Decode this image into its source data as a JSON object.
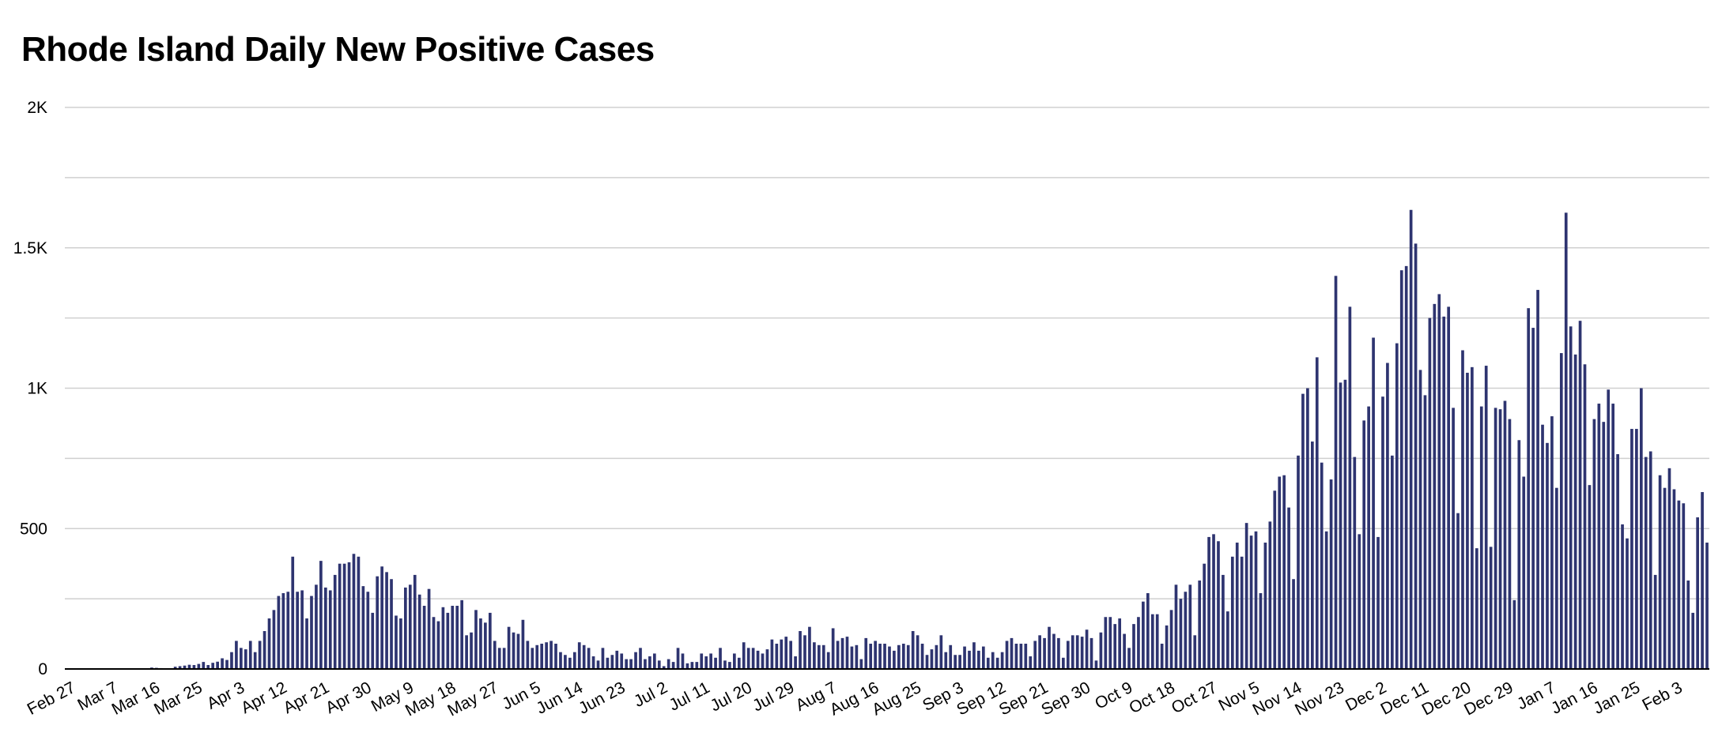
{
  "chart_data": {
    "type": "bar",
    "title": "Rhode Island Daily New Positive Cases",
    "xlabel": "",
    "ylabel": "",
    "ylim": [
      0,
      2000
    ],
    "y_ticks": [
      {
        "value": 0,
        "label": "0"
      },
      {
        "value": 500,
        "label": "500"
      },
      {
        "value": 1000,
        "label": "1K"
      },
      {
        "value": 1500,
        "label": "1.5K"
      },
      {
        "value": 2000,
        "label": "2K"
      }
    ],
    "y_minor_gridlines": [
      250,
      750,
      1250,
      1750
    ],
    "grid": true,
    "legend": "none",
    "bar_color": "#2e3470",
    "grid_color": "#d0d0d0",
    "x_tick_labels": [
      "Feb 27",
      "Mar 7",
      "Mar 16",
      "Mar 25",
      "Apr 3",
      "Apr 12",
      "Apr 21",
      "Apr 30",
      "May 9",
      "May 18",
      "May 27",
      "Jun 5",
      "Jun 14",
      "Jun 23",
      "Jul 2",
      "Jul 11",
      "Jul 20",
      "Jul 29",
      "Aug 7",
      "Aug 16",
      "Aug 25",
      "Sep 3",
      "Sep 12",
      "Sep 21",
      "Sep 30",
      "Oct 9",
      "Oct 18",
      "Oct 27",
      "Nov 5",
      "Nov 14",
      "Nov 23",
      "Dec 2",
      "Dec 11",
      "Dec 20",
      "Dec 29",
      "Jan 7",
      "Jan 16",
      "Jan 25",
      "Feb 3"
    ],
    "x_tick_interval_days": 9,
    "start_date": "2020-02-27",
    "values": [
      0,
      0,
      0,
      0,
      0,
      0,
      0,
      0,
      0,
      0,
      0,
      0,
      0,
      0,
      0,
      0,
      0,
      0,
      5,
      4,
      3,
      0,
      0,
      8,
      10,
      12,
      15,
      14,
      18,
      25,
      14,
      22,
      26,
      38,
      32,
      60,
      100,
      75,
      70,
      100,
      60,
      100,
      135,
      180,
      210,
      260,
      270,
      275,
      400,
      275,
      280,
      180,
      260,
      300,
      385,
      290,
      280,
      335,
      375,
      375,
      380,
      410,
      400,
      295,
      275,
      200,
      330,
      365,
      345,
      320,
      190,
      180,
      290,
      300,
      335,
      265,
      225,
      285,
      185,
      170,
      220,
      200,
      225,
      225,
      245,
      120,
      130,
      210,
      180,
      165,
      200,
      100,
      75,
      75,
      150,
      130,
      125,
      175,
      100,
      75,
      85,
      90,
      95,
      100,
      90,
      60,
      50,
      40,
      60,
      95,
      85,
      75,
      45,
      30,
      75,
      40,
      50,
      65,
      55,
      35,
      35,
      60,
      75,
      35,
      45,
      55,
      30,
      10,
      35,
      25,
      75,
      55,
      20,
      25,
      25,
      55,
      45,
      55,
      40,
      75,
      30,
      25,
      55,
      40,
      95,
      75,
      75,
      65,
      55,
      70,
      105,
      90,
      105,
      115,
      100,
      45,
      135,
      120,
      150,
      95,
      85,
      85,
      60,
      145,
      100,
      110,
      115,
      80,
      85,
      35,
      110,
      90,
      100,
      90,
      90,
      80,
      65,
      85,
      90,
      85,
      135,
      120,
      90,
      50,
      70,
      85,
      120,
      60,
      85,
      50,
      50,
      80,
      65,
      95,
      65,
      80,
      40,
      60,
      40,
      60,
      100,
      110,
      90,
      90,
      90,
      45,
      100,
      120,
      110,
      150,
      125,
      110,
      40,
      100,
      120,
      120,
      115,
      140,
      110,
      30,
      130,
      185,
      185,
      160,
      180,
      125,
      75,
      160,
      185,
      240,
      270,
      195,
      195,
      90,
      155,
      210,
      300,
      250,
      275,
      300,
      120,
      315,
      375,
      470,
      480,
      455,
      335,
      205,
      400,
      450,
      400,
      520,
      475,
      490,
      270,
      450,
      525,
      635,
      685,
      690,
      575,
      320,
      760,
      980,
      1000,
      810,
      1110,
      735,
      490,
      675,
      1400,
      1020,
      1030,
      1290,
      755,
      480,
      885,
      935,
      1180,
      470,
      970,
      1090,
      760,
      1160,
      1420,
      1435,
      1635,
      1515,
      1065,
      975,
      1250,
      1300,
      1335,
      1255,
      1290,
      930,
      555,
      1135,
      1055,
      1075,
      430,
      935,
      1080,
      435,
      930,
      925,
      955,
      890,
      245,
      815,
      685,
      1285,
      1215,
      1350,
      870,
      805,
      900,
      645,
      1125,
      1625,
      1220,
      1120,
      1240,
      1085,
      655,
      890,
      945,
      880,
      995,
      945,
      765,
      515,
      465,
      855,
      855,
      1000,
      755,
      775,
      335,
      690,
      645,
      715,
      640,
      600,
      590,
      315,
      200,
      540,
      630,
      450
    ]
  }
}
